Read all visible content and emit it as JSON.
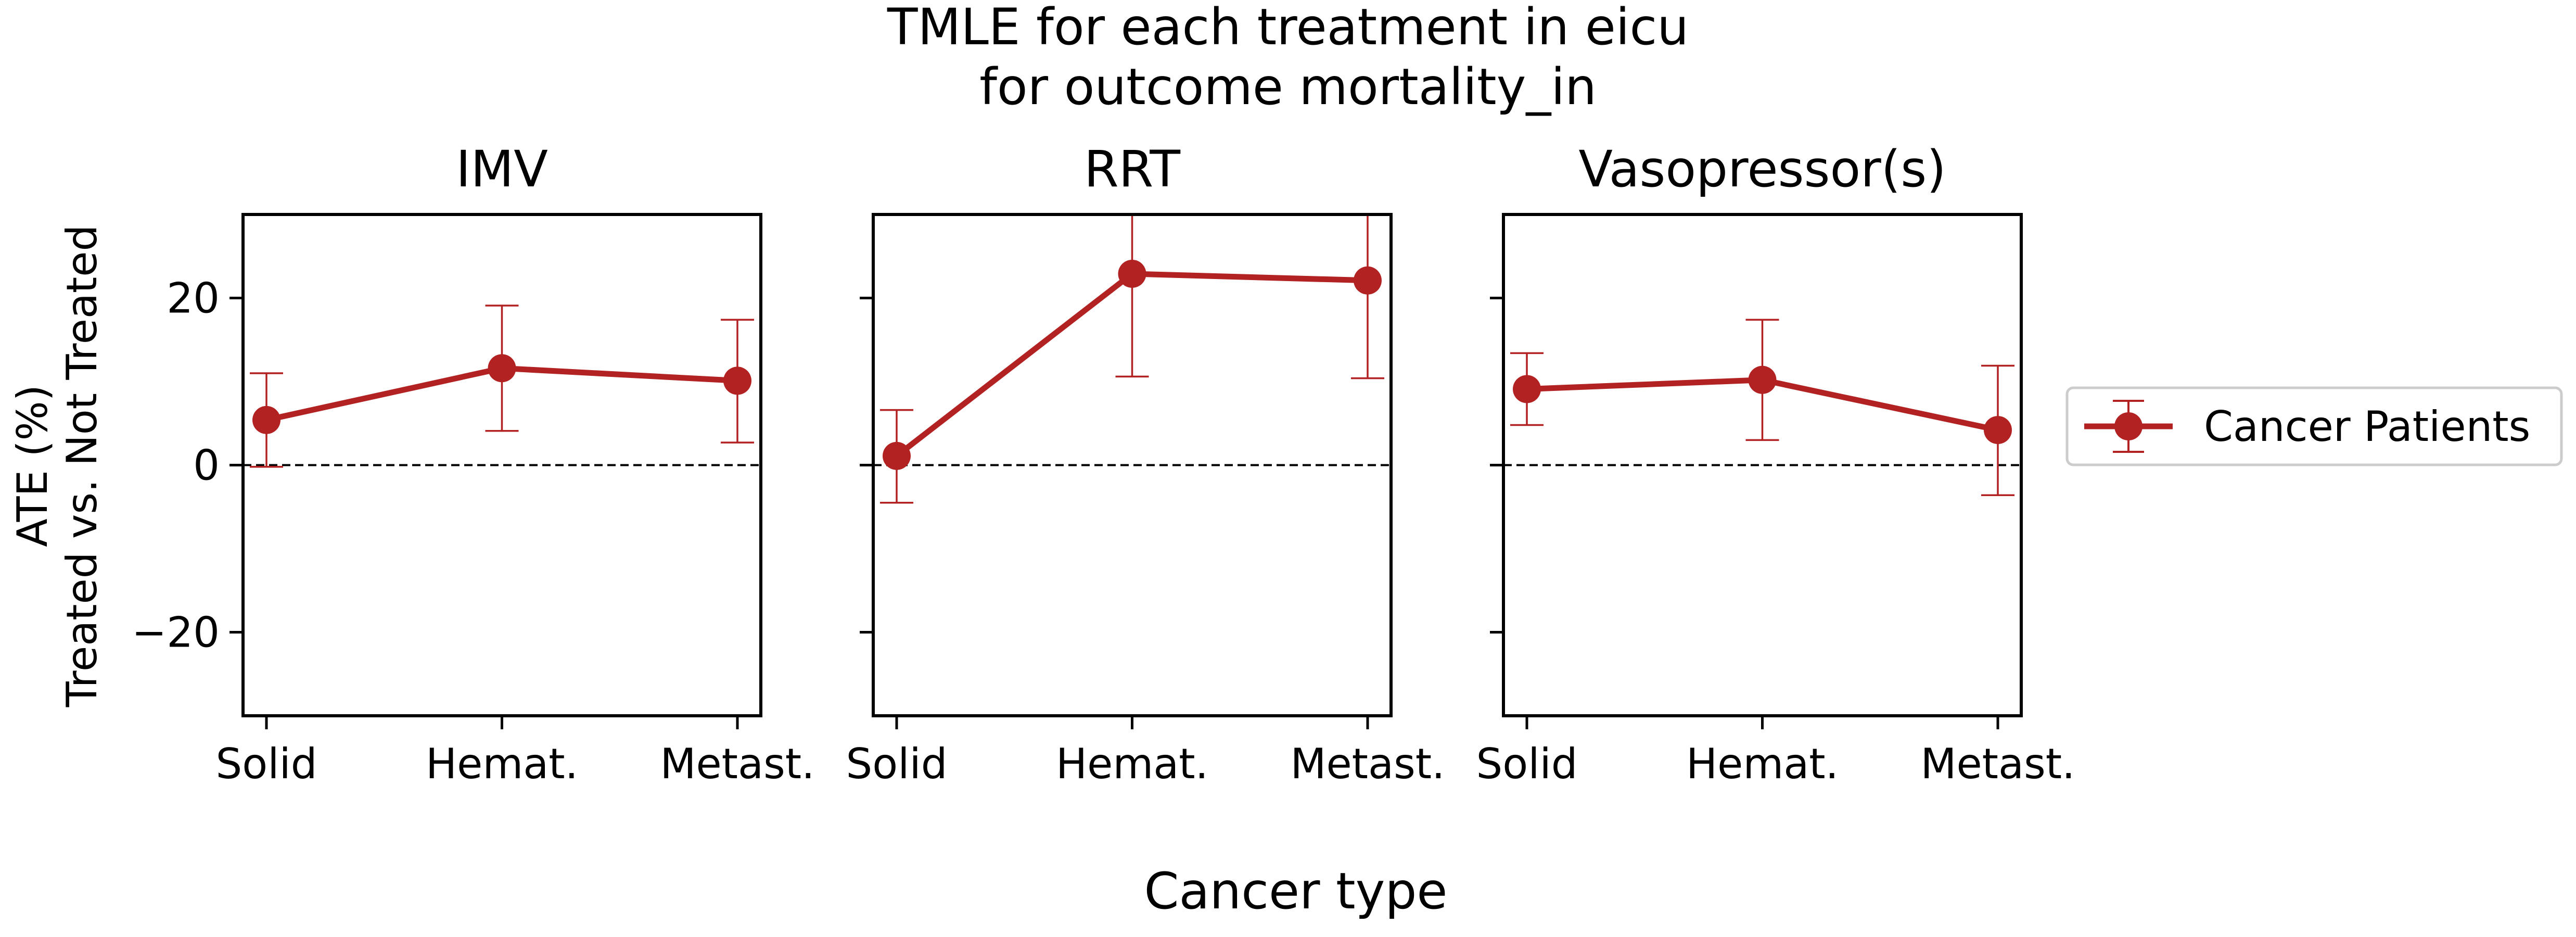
{
  "chart_data": {
    "type": "line",
    "title_line1": "TMLE for each treatment in eicu",
    "title_line2": "for outcome mortality_in",
    "xlabel": "Cancer type",
    "ylabel_line1": "ATE (%)",
    "ylabel_line2": "Treated vs. Not Treated",
    "categories": [
      "Solid",
      "Hemat.",
      "Metast."
    ],
    "ylim": [
      -30,
      30
    ],
    "yticks": [
      -20,
      0,
      20
    ],
    "ytick_labels": [
      "−20",
      "0",
      "20"
    ],
    "reference_line": 0,
    "legend": {
      "position": "right",
      "label": "Cancer Patients"
    },
    "color": "#b22222",
    "panels": [
      {
        "title": "IMV",
        "series": [
          {
            "name": "Cancer Patients",
            "values": [
              5.4,
              11.6,
              10.1
            ],
            "lower": [
              -0.2,
              4.1,
              2.7
            ],
            "upper": [
              11.0,
              19.1,
              17.4
            ]
          }
        ]
      },
      {
        "title": "RRT",
        "series": [
          {
            "name": "Cancer Patients",
            "values": [
              1.1,
              22.9,
              22.1
            ],
            "lower": [
              -4.5,
              10.6,
              10.4
            ],
            "upper": [
              6.6,
              30.0,
              30.0
            ]
          }
        ]
      },
      {
        "title": "Vasopressor(s)",
        "series": [
          {
            "name": "Cancer Patients",
            "values": [
              9.1,
              10.2,
              4.2
            ],
            "lower": [
              4.8,
              3.0,
              -3.6
            ],
            "upper": [
              13.4,
              17.4,
              11.9
            ]
          }
        ]
      }
    ]
  }
}
